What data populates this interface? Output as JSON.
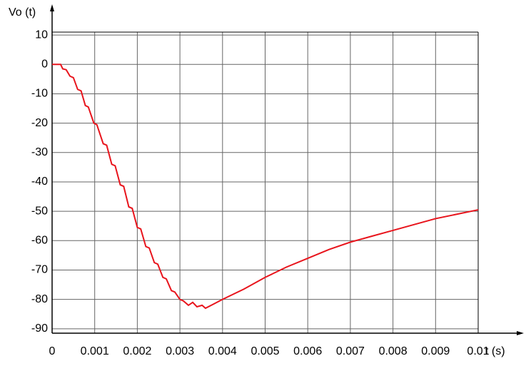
{
  "chart_data": {
    "type": "line",
    "y_label": "Vo (t)",
    "x_label": "t (s)",
    "x": [
      0,
      0.0002,
      0.00025,
      0.00033,
      0.00042,
      0.0005,
      0.0006,
      0.00068,
      0.00078,
      0.00085,
      0.00098,
      0.00105,
      0.0012,
      0.00128,
      0.0014,
      0.00148,
      0.0016,
      0.00168,
      0.0018,
      0.00188,
      0.002,
      0.00208,
      0.0022,
      0.00228,
      0.0024,
      0.00248,
      0.0026,
      0.00268,
      0.0028,
      0.00288,
      0.003,
      0.00308,
      0.0032,
      0.0033,
      0.0034,
      0.00352,
      0.0036,
      0.0038,
      0.004,
      0.0045,
      0.005,
      0.0055,
      0.006,
      0.0065,
      0.007,
      0.0075,
      0.008,
      0.0085,
      0.009,
      0.0095,
      0.01
    ],
    "series": [
      {
        "color": "#e8141c",
        "values": [
          0,
          0,
          -1.5,
          -1.8,
          -4,
          -4.5,
          -8.5,
          -9,
          -14,
          -14.5,
          -20,
          -20.5,
          -27,
          -27.5,
          -34,
          -34.5,
          -41,
          -41.5,
          -48.5,
          -49,
          -55.5,
          -56,
          -62,
          -62.5,
          -67.5,
          -68,
          -72.5,
          -73,
          -77,
          -77.5,
          -80,
          -80.5,
          -82,
          -81,
          -82.5,
          -82,
          -83,
          -81.5,
          -80,
          -76.5,
          -72.5,
          -69,
          -66,
          -63,
          -60.5,
          -58.5,
          -56.5,
          -54.5,
          -52.5,
          -51,
          -49.5
        ]
      }
    ],
    "xlim": [
      0,
      0.01
    ],
    "ylim": [
      -91.5,
      11
    ],
    "xticks": [
      0,
      0.001,
      0.002,
      0.003,
      0.004,
      0.005,
      0.006,
      0.007,
      0.008,
      0.009,
      0.01
    ],
    "yticks": [
      -90,
      -80,
      -70,
      -60,
      -50,
      -40,
      -30,
      -20,
      -10,
      0,
      10
    ],
    "grid": true
  }
}
